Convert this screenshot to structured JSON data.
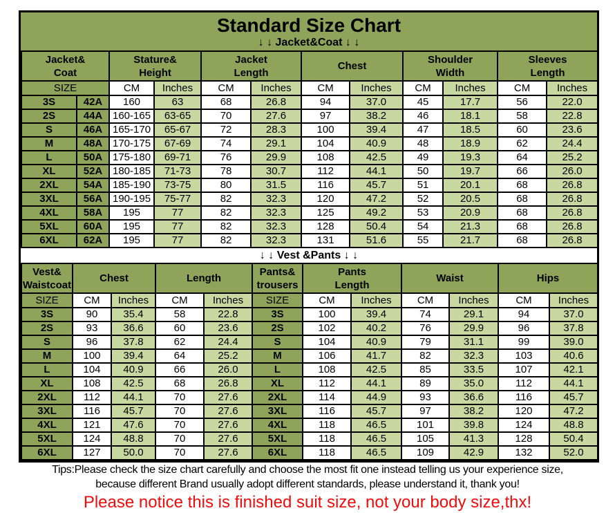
{
  "page": {
    "title": "Standard Size Chart",
    "jacket_section_label": "↓ ↓  Jacket&Coat ↓ ↓",
    "vest_section_label": "↓ ↓  Vest &Pants ↓ ↓",
    "tips_line1": "Tips:Please check the size chart carefully and choose the most fit one instead telling us your experience size,",
    "tips_line2": "because different Brand usually adopt different standards, please understand it, thank you!",
    "notice": "Please notice this is finished suit size, not your body size,thx!"
  },
  "colors": {
    "header_green": "#8da45a",
    "light_green": "#c8d8a0",
    "cell_white": "#ffffff",
    "border_black": "#000000",
    "notice_red": "#f00c0c"
  },
  "jacket_table": {
    "group_headers": [
      "Jacket&\nCoat",
      "Stature&\nHeight",
      "Jacket\nLength",
      "Chest",
      "Shoulder\nWidth",
      "Sleeves\nLength"
    ],
    "unit_headers": [
      "SIZE",
      "CM",
      "Inches",
      "CM",
      "Inches",
      "CM",
      "Inches",
      "CM",
      "Inches",
      "CM",
      "Inches"
    ],
    "rows": [
      [
        "3S",
        "42A",
        "160",
        "63",
        "68",
        "26.8",
        "94",
        "37.0",
        "45",
        "17.7",
        "56",
        "22.0"
      ],
      [
        "2S",
        "44A",
        "160-165",
        "63-65",
        "70",
        "27.6",
        "97",
        "38.2",
        "46",
        "18.1",
        "58",
        "22.8"
      ],
      [
        "S",
        "46A",
        "165-170",
        "65-67",
        "72",
        "28.3",
        "100",
        "39.4",
        "47",
        "18.5",
        "60",
        "23.6"
      ],
      [
        "M",
        "48A",
        "170-175",
        "67-69",
        "74",
        "29.1",
        "104",
        "40.9",
        "48",
        "18.9",
        "62",
        "24.4"
      ],
      [
        "L",
        "50A",
        "175-180",
        "69-71",
        "76",
        "29.9",
        "108",
        "42.5",
        "49",
        "19.3",
        "64",
        "25.2"
      ],
      [
        "XL",
        "52A",
        "180-185",
        "71-73",
        "78",
        "30.7",
        "112",
        "44.1",
        "50",
        "19.7",
        "66",
        "26.0"
      ],
      [
        "2XL",
        "54A",
        "185-190",
        "73-75",
        "80",
        "31.5",
        "116",
        "45.7",
        "51",
        "20.1",
        "68",
        "26.8"
      ],
      [
        "3XL",
        "56A",
        "190-195",
        "75-77",
        "82",
        "32.3",
        "120",
        "47.2",
        "52",
        "20.5",
        "68",
        "26.8"
      ],
      [
        "4XL",
        "58A",
        "195",
        "77",
        "82",
        "32.3",
        "125",
        "49.2",
        "53",
        "20.9",
        "68",
        "26.8"
      ],
      [
        "5XL",
        "60A",
        "195",
        "77",
        "82",
        "32.3",
        "128",
        "50.4",
        "54",
        "21.3",
        "68",
        "26.8"
      ],
      [
        "6XL",
        "62A",
        "195",
        "77",
        "82",
        "32.3",
        "131",
        "51.6",
        "55",
        "21.7",
        "68",
        "26.8"
      ]
    ]
  },
  "vest_pants_table": {
    "group_headers": [
      "Vest&\nWaistcoat",
      "Chest",
      "Length",
      "Pants&\ntrousers",
      "Pants\nLength",
      "Waist",
      "Hips"
    ],
    "unit_headers": [
      "SIZE",
      "CM",
      "Inches",
      "CM",
      "Inches",
      "SIZE",
      "CM",
      "Inches",
      "CM",
      "Inches",
      "CM",
      "Inches"
    ],
    "rows": [
      [
        "3S",
        "90",
        "35.4",
        "58",
        "22.8",
        "3S",
        "100",
        "39.4",
        "74",
        "29.1",
        "94",
        "37.0"
      ],
      [
        "2S",
        "93",
        "36.6",
        "60",
        "23.6",
        "2S",
        "102",
        "40.2",
        "76",
        "29.9",
        "96",
        "37.8"
      ],
      [
        "S",
        "96",
        "37.8",
        "62",
        "24.4",
        "S",
        "104",
        "40.9",
        "79",
        "31.1",
        "99",
        "39.0"
      ],
      [
        "M",
        "100",
        "39.4",
        "64",
        "25.2",
        "M",
        "106",
        "41.7",
        "82",
        "32.3",
        "103",
        "40.6"
      ],
      [
        "L",
        "104",
        "40.9",
        "66",
        "26.0",
        "L",
        "108",
        "42.5",
        "85",
        "33.5",
        "107",
        "42.1"
      ],
      [
        "XL",
        "108",
        "42.5",
        "68",
        "26.8",
        "XL",
        "112",
        "44.1",
        "89",
        "35.0",
        "112",
        "44.1"
      ],
      [
        "2XL",
        "112",
        "44.1",
        "70",
        "27.6",
        "2XL",
        "114",
        "44.9",
        "93",
        "36.6",
        "116",
        "45.7"
      ],
      [
        "3XL",
        "116",
        "45.7",
        "70",
        "27.6",
        "3XL",
        "116",
        "45.7",
        "97",
        "38.2",
        "120",
        "47.2"
      ],
      [
        "4XL",
        "121",
        "47.6",
        "70",
        "27.6",
        "4XL",
        "118",
        "46.5",
        "101",
        "39.8",
        "124",
        "48.8"
      ],
      [
        "5XL",
        "124",
        "48.8",
        "70",
        "27.6",
        "5XL",
        "118",
        "46.5",
        "105",
        "41.3",
        "128",
        "50.4"
      ],
      [
        "6XL",
        "127",
        "50.0",
        "70",
        "27.6",
        "6XL",
        "118",
        "46.5",
        "109",
        "42.9",
        "132",
        "52.0"
      ]
    ]
  }
}
